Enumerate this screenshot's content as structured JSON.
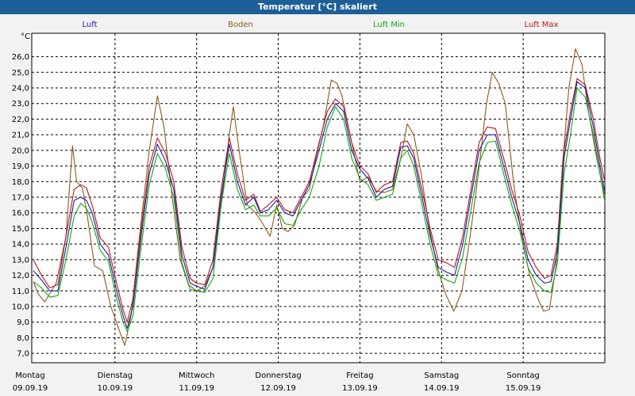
{
  "window": {
    "title": "Temperatur [°C] skaliert"
  },
  "chart_data": {
    "type": "line",
    "title": "Temperatur [°C] skaliert",
    "yunit": "°C",
    "ylim": [
      6.4,
      27.5
    ],
    "yticks": [
      "7,0",
      "8,0",
      "9,0",
      "10,0",
      "11,0",
      "12,0",
      "13,0",
      "14,0",
      "15,0",
      "16,0",
      "17,0",
      "18,0",
      "19,0",
      "20,0",
      "21,0",
      "22,0",
      "23,0",
      "24,0",
      "25,0",
      "26,0"
    ],
    "grid": true,
    "legend_position": "top",
    "x_range_days": [
      0,
      7
    ],
    "x_days": [
      {
        "weekday": "Montag",
        "date": "09.09.19"
      },
      {
        "weekday": "Dienstag",
        "date": "10.09.19"
      },
      {
        "weekday": "Mittwoch",
        "date": "11.09.19"
      },
      {
        "weekday": "Donnerstag",
        "date": "12.09.19"
      },
      {
        "weekday": "Freitag",
        "date": "13.09.19"
      },
      {
        "weekday": "Samstag",
        "date": "14.09.19"
      },
      {
        "weekday": "Sonntag",
        "date": "15.09.19"
      }
    ],
    "series": [
      {
        "name": "Boden",
        "color": "#8b5a1b",
        "points": [
          [
            0,
            11.6
          ],
          [
            0.06,
            10.8
          ],
          [
            0.14,
            10.3
          ],
          [
            0.28,
            11.5
          ],
          [
            0.4,
            14.5
          ],
          [
            0.48,
            20.3
          ],
          [
            0.53,
            18.0
          ],
          [
            0.6,
            17.6
          ],
          [
            0.65,
            16.2
          ],
          [
            0.75,
            12.6
          ],
          [
            0.85,
            12.3
          ],
          [
            0.95,
            10.0
          ],
          [
            1.05,
            8.5
          ],
          [
            1.12,
            7.5
          ],
          [
            1.2,
            9.5
          ],
          [
            1.3,
            14.5
          ],
          [
            1.42,
            20.0
          ],
          [
            1.52,
            23.5
          ],
          [
            1.6,
            21.5
          ],
          [
            1.7,
            17.0
          ],
          [
            1.8,
            13.0
          ],
          [
            1.9,
            11.4
          ],
          [
            2.0,
            11.0
          ],
          [
            2.1,
            11.3
          ],
          [
            2.2,
            12.5
          ],
          [
            2.3,
            16.5
          ],
          [
            2.4,
            21.0
          ],
          [
            2.45,
            22.8
          ],
          [
            2.52,
            20.0
          ],
          [
            2.62,
            16.5
          ],
          [
            2.72,
            16.0
          ],
          [
            2.8,
            15.4
          ],
          [
            2.9,
            14.5
          ],
          [
            2.98,
            16.5
          ],
          [
            3.05,
            15.0
          ],
          [
            3.12,
            14.8
          ],
          [
            3.2,
            15.2
          ],
          [
            3.3,
            17.0
          ],
          [
            3.38,
            17.5
          ],
          [
            3.46,
            19.5
          ],
          [
            3.55,
            21.5
          ],
          [
            3.65,
            24.5
          ],
          [
            3.72,
            24.3
          ],
          [
            3.78,
            23.5
          ],
          [
            3.88,
            21.0
          ],
          [
            4.0,
            18.0
          ],
          [
            4.1,
            18.3
          ],
          [
            4.2,
            17.4
          ],
          [
            4.3,
            17.3
          ],
          [
            4.4,
            17.5
          ],
          [
            4.5,
            19.5
          ],
          [
            4.58,
            21.7
          ],
          [
            4.66,
            21.0
          ],
          [
            4.75,
            18.5
          ],
          [
            4.85,
            15.0
          ],
          [
            4.95,
            12.5
          ],
          [
            5.05,
            10.8
          ],
          [
            5.15,
            9.7
          ],
          [
            5.25,
            11.0
          ],
          [
            5.35,
            14.5
          ],
          [
            5.45,
            18.5
          ],
          [
            5.55,
            23.0
          ],
          [
            5.62,
            25.0
          ],
          [
            5.7,
            24.3
          ],
          [
            5.78,
            23.0
          ],
          [
            5.88,
            18.0
          ],
          [
            5.98,
            14.5
          ],
          [
            6.08,
            12.0
          ],
          [
            6.18,
            10.5
          ],
          [
            6.25,
            9.7
          ],
          [
            6.32,
            9.8
          ],
          [
            6.4,
            12.5
          ],
          [
            6.48,
            19.0
          ],
          [
            6.56,
            24.0
          ],
          [
            6.64,
            26.5
          ],
          [
            6.72,
            25.5
          ],
          [
            6.8,
            22.5
          ],
          [
            6.9,
            19.5
          ],
          [
            7.0,
            17.0
          ]
        ]
      },
      {
        "name": "Luft Max",
        "color": "#b4181e",
        "points": [
          [
            0,
            13.0
          ],
          [
            0.1,
            12.0
          ],
          [
            0.2,
            11.2
          ],
          [
            0.3,
            11.4
          ],
          [
            0.4,
            14.5
          ],
          [
            0.5,
            17.5
          ],
          [
            0.58,
            17.8
          ],
          [
            0.65,
            17.6
          ],
          [
            0.72,
            16.5
          ],
          [
            0.82,
            14.4
          ],
          [
            0.92,
            13.8
          ],
          [
            1.02,
            11.5
          ],
          [
            1.1,
            9.8
          ],
          [
            1.15,
            9.0
          ],
          [
            1.22,
            10.5
          ],
          [
            1.32,
            15.0
          ],
          [
            1.42,
            19.0
          ],
          [
            1.52,
            20.8
          ],
          [
            1.62,
            19.8
          ],
          [
            1.72,
            18.0
          ],
          [
            1.82,
            13.8
          ],
          [
            1.92,
            11.8
          ],
          [
            2.0,
            11.5
          ],
          [
            2.1,
            11.4
          ],
          [
            2.2,
            13.0
          ],
          [
            2.3,
            17.5
          ],
          [
            2.4,
            20.8
          ],
          [
            2.5,
            18.5
          ],
          [
            2.6,
            16.8
          ],
          [
            2.7,
            17.2
          ],
          [
            2.78,
            16.1
          ],
          [
            2.88,
            16.5
          ],
          [
            2.98,
            17.0
          ],
          [
            3.08,
            16.2
          ],
          [
            3.18,
            16.0
          ],
          [
            3.28,
            17.0
          ],
          [
            3.38,
            18.0
          ],
          [
            3.5,
            20.5
          ],
          [
            3.6,
            22.5
          ],
          [
            3.7,
            23.3
          ],
          [
            3.8,
            22.8
          ],
          [
            3.9,
            20.5
          ],
          [
            4.0,
            19.0
          ],
          [
            4.1,
            18.5
          ],
          [
            4.2,
            17.3
          ],
          [
            4.3,
            17.8
          ],
          [
            4.4,
            18.0
          ],
          [
            4.5,
            20.5
          ],
          [
            4.58,
            20.6
          ],
          [
            4.66,
            19.8
          ],
          [
            4.76,
            17.5
          ],
          [
            4.86,
            15.0
          ],
          [
            4.96,
            13.0
          ],
          [
            5.06,
            12.8
          ],
          [
            5.16,
            12.5
          ],
          [
            5.26,
            14.5
          ],
          [
            5.36,
            17.5
          ],
          [
            5.46,
            20.5
          ],
          [
            5.56,
            21.5
          ],
          [
            5.66,
            21.4
          ],
          [
            5.76,
            19.5
          ],
          [
            5.86,
            17.5
          ],
          [
            5.96,
            15.8
          ],
          [
            6.06,
            13.5
          ],
          [
            6.16,
            12.5
          ],
          [
            6.26,
            11.8
          ],
          [
            6.34,
            12.0
          ],
          [
            6.42,
            14.0
          ],
          [
            6.5,
            20.0
          ],
          [
            6.58,
            22.5
          ],
          [
            6.66,
            24.6
          ],
          [
            6.76,
            24.2
          ],
          [
            6.86,
            22.0
          ],
          [
            6.94,
            19.5
          ],
          [
            7.0,
            18.0
          ]
        ]
      },
      {
        "name": "Luft",
        "color": "#1c1c9c",
        "points": [
          [
            0,
            12.3
          ],
          [
            0.1,
            11.7
          ],
          [
            0.2,
            11.0
          ],
          [
            0.3,
            11.0
          ],
          [
            0.4,
            13.8
          ],
          [
            0.5,
            16.8
          ],
          [
            0.58,
            17.0
          ],
          [
            0.65,
            16.8
          ],
          [
            0.72,
            16.0
          ],
          [
            0.82,
            14.0
          ],
          [
            0.92,
            13.3
          ],
          [
            1.02,
            11.0
          ],
          [
            1.1,
            9.4
          ],
          [
            1.15,
            8.6
          ],
          [
            1.22,
            10.0
          ],
          [
            1.32,
            14.5
          ],
          [
            1.42,
            18.5
          ],
          [
            1.52,
            20.4
          ],
          [
            1.62,
            19.3
          ],
          [
            1.72,
            17.5
          ],
          [
            1.82,
            13.3
          ],
          [
            1.92,
            11.5
          ],
          [
            2.0,
            11.3
          ],
          [
            2.1,
            11.1
          ],
          [
            2.2,
            12.5
          ],
          [
            2.3,
            17.0
          ],
          [
            2.4,
            20.4
          ],
          [
            2.5,
            18.0
          ],
          [
            2.6,
            16.5
          ],
          [
            2.7,
            17.0
          ],
          [
            2.78,
            16.0
          ],
          [
            2.88,
            16.2
          ],
          [
            2.98,
            16.8
          ],
          [
            3.08,
            16.0
          ],
          [
            3.18,
            15.8
          ],
          [
            3.28,
            16.8
          ],
          [
            3.38,
            17.8
          ],
          [
            3.5,
            20.0
          ],
          [
            3.6,
            22.0
          ],
          [
            3.7,
            23.0
          ],
          [
            3.8,
            22.5
          ],
          [
            3.9,
            20.0
          ],
          [
            4.0,
            18.8
          ],
          [
            4.1,
            18.2
          ],
          [
            4.2,
            17.0
          ],
          [
            4.3,
            17.5
          ],
          [
            4.4,
            17.7
          ],
          [
            4.5,
            20.2
          ],
          [
            4.58,
            20.3
          ],
          [
            4.66,
            19.5
          ],
          [
            4.76,
            17.0
          ],
          [
            4.86,
            14.5
          ],
          [
            4.96,
            12.5
          ],
          [
            5.06,
            12.2
          ],
          [
            5.16,
            12.0
          ],
          [
            5.26,
            14.0
          ],
          [
            5.36,
            17.0
          ],
          [
            5.46,
            20.0
          ],
          [
            5.56,
            21.0
          ],
          [
            5.66,
            21.0
          ],
          [
            5.76,
            19.0
          ],
          [
            5.86,
            17.0
          ],
          [
            5.96,
            15.3
          ],
          [
            6.06,
            13.0
          ],
          [
            6.16,
            12.0
          ],
          [
            6.26,
            11.5
          ],
          [
            6.34,
            11.6
          ],
          [
            6.42,
            13.5
          ],
          [
            6.5,
            19.5
          ],
          [
            6.58,
            22.0
          ],
          [
            6.66,
            24.4
          ],
          [
            6.76,
            24.0
          ],
          [
            6.86,
            21.5
          ],
          [
            6.94,
            19.0
          ],
          [
            7.0,
            17.3
          ]
        ]
      },
      {
        "name": "Luft Min",
        "color": "#10a810",
        "points": [
          [
            0,
            11.6
          ],
          [
            0.1,
            11.2
          ],
          [
            0.2,
            10.6
          ],
          [
            0.3,
            10.7
          ],
          [
            0.4,
            13.0
          ],
          [
            0.5,
            15.8
          ],
          [
            0.58,
            16.6
          ],
          [
            0.65,
            16.3
          ],
          [
            0.72,
            15.4
          ],
          [
            0.82,
            13.6
          ],
          [
            0.92,
            12.9
          ],
          [
            1.02,
            10.5
          ],
          [
            1.1,
            9.0
          ],
          [
            1.15,
            8.4
          ],
          [
            1.22,
            9.4
          ],
          [
            1.32,
            13.8
          ],
          [
            1.42,
            17.8
          ],
          [
            1.52,
            19.8
          ],
          [
            1.62,
            18.8
          ],
          [
            1.72,
            17.0
          ],
          [
            1.82,
            12.8
          ],
          [
            1.92,
            11.1
          ],
          [
            2.0,
            11.0
          ],
          [
            2.1,
            10.9
          ],
          [
            2.2,
            11.8
          ],
          [
            2.3,
            16.5
          ],
          [
            2.4,
            19.8
          ],
          [
            2.5,
            17.5
          ],
          [
            2.6,
            16.2
          ],
          [
            2.7,
            16.5
          ],
          [
            2.78,
            15.8
          ],
          [
            2.88,
            15.8
          ],
          [
            2.98,
            16.3
          ],
          [
            3.08,
            15.3
          ],
          [
            3.18,
            15.2
          ],
          [
            3.28,
            16.2
          ],
          [
            3.38,
            17.0
          ],
          [
            3.5,
            19.0
          ],
          [
            3.6,
            21.5
          ],
          [
            3.7,
            22.8
          ],
          [
            3.8,
            22.0
          ],
          [
            3.9,
            19.5
          ],
          [
            4.0,
            18.2
          ],
          [
            4.1,
            17.8
          ],
          [
            4.2,
            16.8
          ],
          [
            4.3,
            17.0
          ],
          [
            4.4,
            17.2
          ],
          [
            4.5,
            19.5
          ],
          [
            4.58,
            20.0
          ],
          [
            4.66,
            19.0
          ],
          [
            4.76,
            16.5
          ],
          [
            4.86,
            14.0
          ],
          [
            4.96,
            12.0
          ],
          [
            5.06,
            11.7
          ],
          [
            5.16,
            11.5
          ],
          [
            5.26,
            13.2
          ],
          [
            5.36,
            16.2
          ],
          [
            5.46,
            19.2
          ],
          [
            5.56,
            20.5
          ],
          [
            5.66,
            20.6
          ],
          [
            5.76,
            18.5
          ],
          [
            5.86,
            16.5
          ],
          [
            5.96,
            14.8
          ],
          [
            6.06,
            12.5
          ],
          [
            6.16,
            11.5
          ],
          [
            6.26,
            11.0
          ],
          [
            6.34,
            10.9
          ],
          [
            6.42,
            12.8
          ],
          [
            6.5,
            18.5
          ],
          [
            6.58,
            21.0
          ],
          [
            6.66,
            24.0
          ],
          [
            6.76,
            23.4
          ],
          [
            6.86,
            21.0
          ],
          [
            6.94,
            18.5
          ],
          [
            7.0,
            16.7
          ]
        ]
      }
    ]
  }
}
